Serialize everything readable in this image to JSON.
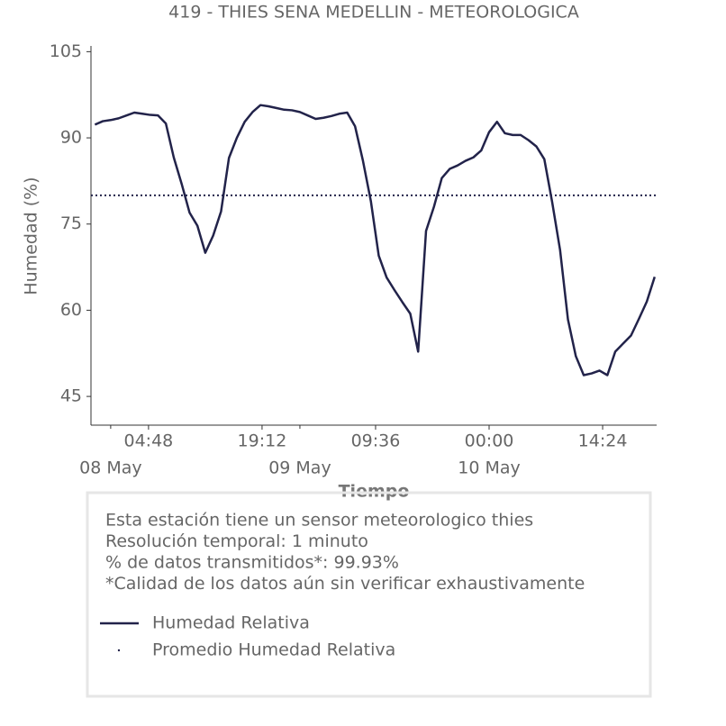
{
  "chart_data": {
    "type": "line",
    "title": "419 - THIES SENA MEDELLIN - METEOROLOGICA",
    "xlabel": "Tiempo",
    "ylabel": "Humedad (%)",
    "x": [
      "07 May 22:00",
      "07 May 23:00",
      "08 May 00:00",
      "08 May 01:00",
      "08 May 02:00",
      "08 May 03:00",
      "08 May 04:00",
      "08 May 05:00",
      "08 May 06:00",
      "08 May 07:00",
      "08 May 08:00",
      "08 May 09:00",
      "08 May 10:00",
      "08 May 11:00",
      "08 May 12:00",
      "08 May 13:00",
      "08 May 14:00",
      "08 May 15:00",
      "08 May 16:00",
      "08 May 17:00",
      "08 May 18:00",
      "08 May 19:00",
      "08 May 20:00",
      "08 May 21:00",
      "08 May 22:00",
      "08 May 23:00",
      "09 May 00:00",
      "09 May 01:00",
      "09 May 02:00",
      "09 May 03:00",
      "09 May 04:00",
      "09 May 05:00",
      "09 May 06:00",
      "09 May 07:00",
      "09 May 08:00",
      "09 May 09:00",
      "09 May 10:00",
      "09 May 11:00",
      "09 May 12:00",
      "09 May 13:00",
      "09 May 14:00",
      "09 May 15:00",
      "09 May 16:00",
      "09 May 17:00",
      "09 May 18:00",
      "09 May 19:00",
      "09 May 20:00",
      "09 May 21:00",
      "09 May 22:00",
      "09 May 23:00",
      "10 May 00:00",
      "10 May 01:00",
      "10 May 02:00",
      "10 May 03:00",
      "10 May 04:00",
      "10 May 05:00",
      "10 May 06:00",
      "10 May 07:00",
      "10 May 08:00",
      "10 May 09:00",
      "10 May 10:00",
      "10 May 11:00",
      "10 May 12:00",
      "10 May 13:00",
      "10 May 14:00",
      "10 May 15:00",
      "10 May 16:00",
      "10 May 17:00",
      "10 May 18:00",
      "10 May 19:00",
      "10 May 20:00",
      "10 May 21:00"
    ],
    "series": [
      {
        "name": "Humedad Relativa",
        "color": "#22234a",
        "values": [
          92.3,
          92.9,
          93.1,
          93.4,
          93.9,
          94.4,
          94.2,
          94,
          93.9,
          92.5,
          86.6,
          82,
          77,
          74.7,
          70,
          73,
          77.2,
          86.5,
          90,
          92.8,
          94.5,
          95.7,
          95.5,
          95.2,
          94.9,
          94.8,
          94.5,
          93.9,
          93.3,
          93.5,
          93.8,
          94.2,
          94.4,
          92,
          86,
          79,
          69.5,
          65.7,
          63.5,
          61.4,
          59.4,
          52.8,
          73.8,
          78,
          83,
          84.6,
          85.2,
          86,
          86.6,
          87.8,
          91,
          92.8,
          90.8,
          90.5,
          90.5,
          89.6,
          88.5,
          86.3,
          78.8,
          70.5,
          58.4,
          52,
          48.7,
          49,
          49.5,
          48.7,
          52.8,
          54.2,
          55.6,
          58.5,
          61.5,
          65.8
        ]
      }
    ],
    "mean": {
      "name": "Promedio Humedad Relativa",
      "value": 80,
      "color": "#22234a"
    },
    "xlim": [
      "07 May 21:30",
      "10 May 21:15"
    ],
    "xticks": [
      {
        "value": "08 May 04:48",
        "label": "04:48"
      },
      {
        "value": "08 May 19:12",
        "label": "19:12"
      },
      {
        "value": "09 May 09:36",
        "label": "09:36"
      },
      {
        "value": "10 May 00:00",
        "label": "00:00"
      },
      {
        "value": "10 May 14:24",
        "label": "14:24"
      }
    ],
    "xticks_minor": [
      {
        "value": "08 May 00:00",
        "label": "08 May"
      },
      {
        "value": "09 May 00:00",
        "label": "09 May"
      },
      {
        "value": "10 May 00:00",
        "label": "10 May"
      }
    ],
    "ylim": [
      40,
      106
    ],
    "yticks": [
      45,
      60,
      75,
      90,
      105
    ],
    "notes": [
      "Esta estación tiene un sensor meteorologico thies",
      "Resolución temporal: 1 minuto",
      "% de datos transmitidos*: 99.93%",
      "*Calidad de los datos aún sin verificar exhaustivamente"
    ]
  }
}
